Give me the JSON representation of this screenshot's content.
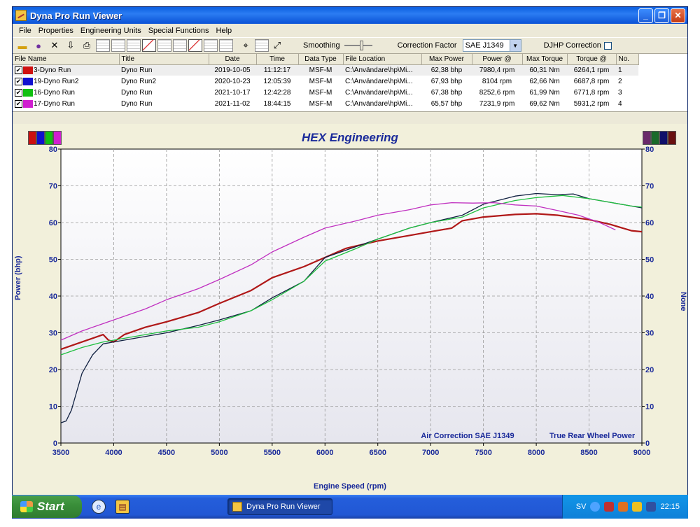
{
  "window": {
    "title": "Dyna Pro Run Viewer"
  },
  "menu": [
    "File",
    "Properties",
    "Engineering Units",
    "Special Functions",
    "Help"
  ],
  "toolbar": {
    "smoothing_label": "Smoothing",
    "correction_label": "Correction Factor",
    "correction_value": "SAE J1349",
    "djhp_label": "DJHP Correction"
  },
  "table": {
    "headers": [
      "File Name",
      "Title",
      "Date",
      "Time",
      "Data Type",
      "File Location",
      "Max Power",
      "Power @",
      "Max Torque",
      "Torque @",
      "No."
    ],
    "rows": [
      {
        "color": "#d01010",
        "file": "3-Dyno Run",
        "title": "Dyno Run",
        "date": "2019-10-05",
        "time": "11:12:17",
        "type": "MSF-M",
        "location": "C:\\Användare\\hp\\Mi...",
        "max_power": "62,38 bhp",
        "power_at": "7980,4 rpm",
        "max_torque": "60,31 Nm",
        "torque_at": "6264,1 rpm",
        "no": "1"
      },
      {
        "color": "#1010d0",
        "file": "19-Dyno Run2",
        "title": "Dyno Run2",
        "date": "2020-10-23",
        "time": "12:05:39",
        "type": "MSF-M",
        "location": "C:\\Användare\\hp\\Mi...",
        "max_power": "67,93 bhp",
        "power_at": "8104 rpm",
        "max_torque": "62,66 Nm",
        "torque_at": "6687,8 rpm",
        "no": "2"
      },
      {
        "color": "#10c010",
        "file": "16-Dyno Run",
        "title": "Dyno Run",
        "date": "2021-10-17",
        "time": "12:42:28",
        "type": "MSF-M",
        "location": "C:\\Användare\\hp\\Mi...",
        "max_power": "67,38 bhp",
        "power_at": "8252,6 rpm",
        "max_torque": "61,99 Nm",
        "torque_at": "6771,8 rpm",
        "no": "3"
      },
      {
        "color": "#d020d0",
        "file": "17-Dyno Run",
        "title": "Dyno Run",
        "date": "2021-11-02",
        "time": "18:44:15",
        "type": "MSF-M",
        "location": "C:\\Användare\\hp\\Mi...",
        "max_power": "65,57 bhp",
        "power_at": "7231,9 rpm",
        "max_torque": "69,62 Nm",
        "torque_at": "5931,2 rpm",
        "no": "4"
      }
    ]
  },
  "legend_left_colors": [
    "#cc1010",
    "#1010cc",
    "#10c010",
    "#d020d0"
  ],
  "legend_right_colors": [
    "#6a2a6a",
    "#1a6a2a",
    "#10106a",
    "#6a1010"
  ],
  "chart_data": {
    "type": "line",
    "title": "HEX Engineering",
    "xlabel": "Engine Speed (rpm)",
    "ylabel": "Power (bhp)",
    "ylabel_right": "None",
    "xlim": [
      3500,
      9000
    ],
    "ylim": [
      0,
      80
    ],
    "x_ticks": [
      3500,
      4000,
      4500,
      5000,
      5500,
      6000,
      6500,
      7000,
      7500,
      8000,
      8500,
      9000
    ],
    "y_ticks": [
      0,
      10,
      20,
      30,
      40,
      50,
      60,
      70,
      80
    ],
    "grid": true,
    "annotations": [
      "Air Correction SAE J1349",
      "True Rear Wheel Power"
    ],
    "series": [
      {
        "name": "3-Dyno Run",
        "color": "#b01818",
        "x": [
          3500,
          3700,
          3900,
          3950,
          4000,
          4100,
          4300,
          4500,
          4800,
          5000,
          5300,
          5500,
          5800,
          6000,
          6200,
          6500,
          6800,
          7000,
          7200,
          7300,
          7500,
          7800,
          8000,
          8200,
          8500,
          8700,
          8900,
          9000
        ],
        "y": [
          25.5,
          27.5,
          29.5,
          28,
          27.5,
          29.5,
          31.5,
          33,
          35.5,
          38,
          41.5,
          45,
          48,
          50.5,
          53,
          55,
          56.5,
          57.5,
          58.5,
          60.5,
          61.5,
          62.2,
          62.4,
          62,
          60.8,
          59.5,
          57.8,
          57.5
        ]
      },
      {
        "name": "19-Dyno Run2",
        "color": "#102040",
        "x": [
          3500,
          3550,
          3600,
          3650,
          3700,
          3800,
          3900,
          4000,
          4200,
          4500,
          4800,
          5000,
          5300,
          5500,
          5800,
          6000,
          6300,
          6500,
          6800,
          7000,
          7300,
          7500,
          7800,
          8000,
          8200,
          8350,
          8500,
          8700,
          8900,
          9000
        ],
        "y": [
          5.5,
          6,
          9,
          14,
          19,
          24,
          27,
          27.5,
          28.5,
          30,
          32,
          33.5,
          36,
          39.5,
          44,
          50.5,
          53.5,
          55.5,
          58.5,
          60,
          62,
          65,
          67.2,
          67.9,
          67.6,
          67.8,
          66.5,
          65.5,
          64.5,
          64
        ]
      },
      {
        "name": "16-Dyno Run",
        "color": "#20c040",
        "x": [
          3500,
          3700,
          3900,
          4000,
          4300,
          4500,
          4800,
          5000,
          5300,
          5500,
          5800,
          6000,
          6300,
          6500,
          6800,
          7000,
          7300,
          7500,
          7800,
          8000,
          8250,
          8500,
          8700,
          8900,
          9000
        ],
        "y": [
          24,
          26,
          27.5,
          28,
          29.5,
          30.5,
          31.5,
          33,
          36,
          39,
          44,
          49.5,
          53,
          55.5,
          58.5,
          60,
          61.5,
          64,
          66,
          66.8,
          67.38,
          66.5,
          65.5,
          64.5,
          64.2
        ]
      },
      {
        "name": "17-Dyno Run",
        "color": "#c030c0",
        "x": [
          3500,
          3700,
          3900,
          4000,
          4300,
          4500,
          4800,
          5000,
          5300,
          5500,
          5800,
          6000,
          6300,
          6500,
          6800,
          7000,
          7200,
          7400,
          7600,
          7800,
          8000,
          8200,
          8400,
          8600,
          8750
        ],
        "y": [
          28,
          30.5,
          32.5,
          33.5,
          36.5,
          39,
          42,
          44.5,
          48.5,
          52,
          56,
          58.5,
          60.5,
          62,
          63.5,
          64.8,
          65.4,
          65.3,
          65.4,
          64.8,
          64.5,
          63.3,
          62,
          60,
          58
        ]
      }
    ]
  },
  "taskbar": {
    "start_label": "Start",
    "task_label": "Dyna Pro Run Viewer",
    "tray_lang": "SV",
    "clock": "22:15"
  }
}
